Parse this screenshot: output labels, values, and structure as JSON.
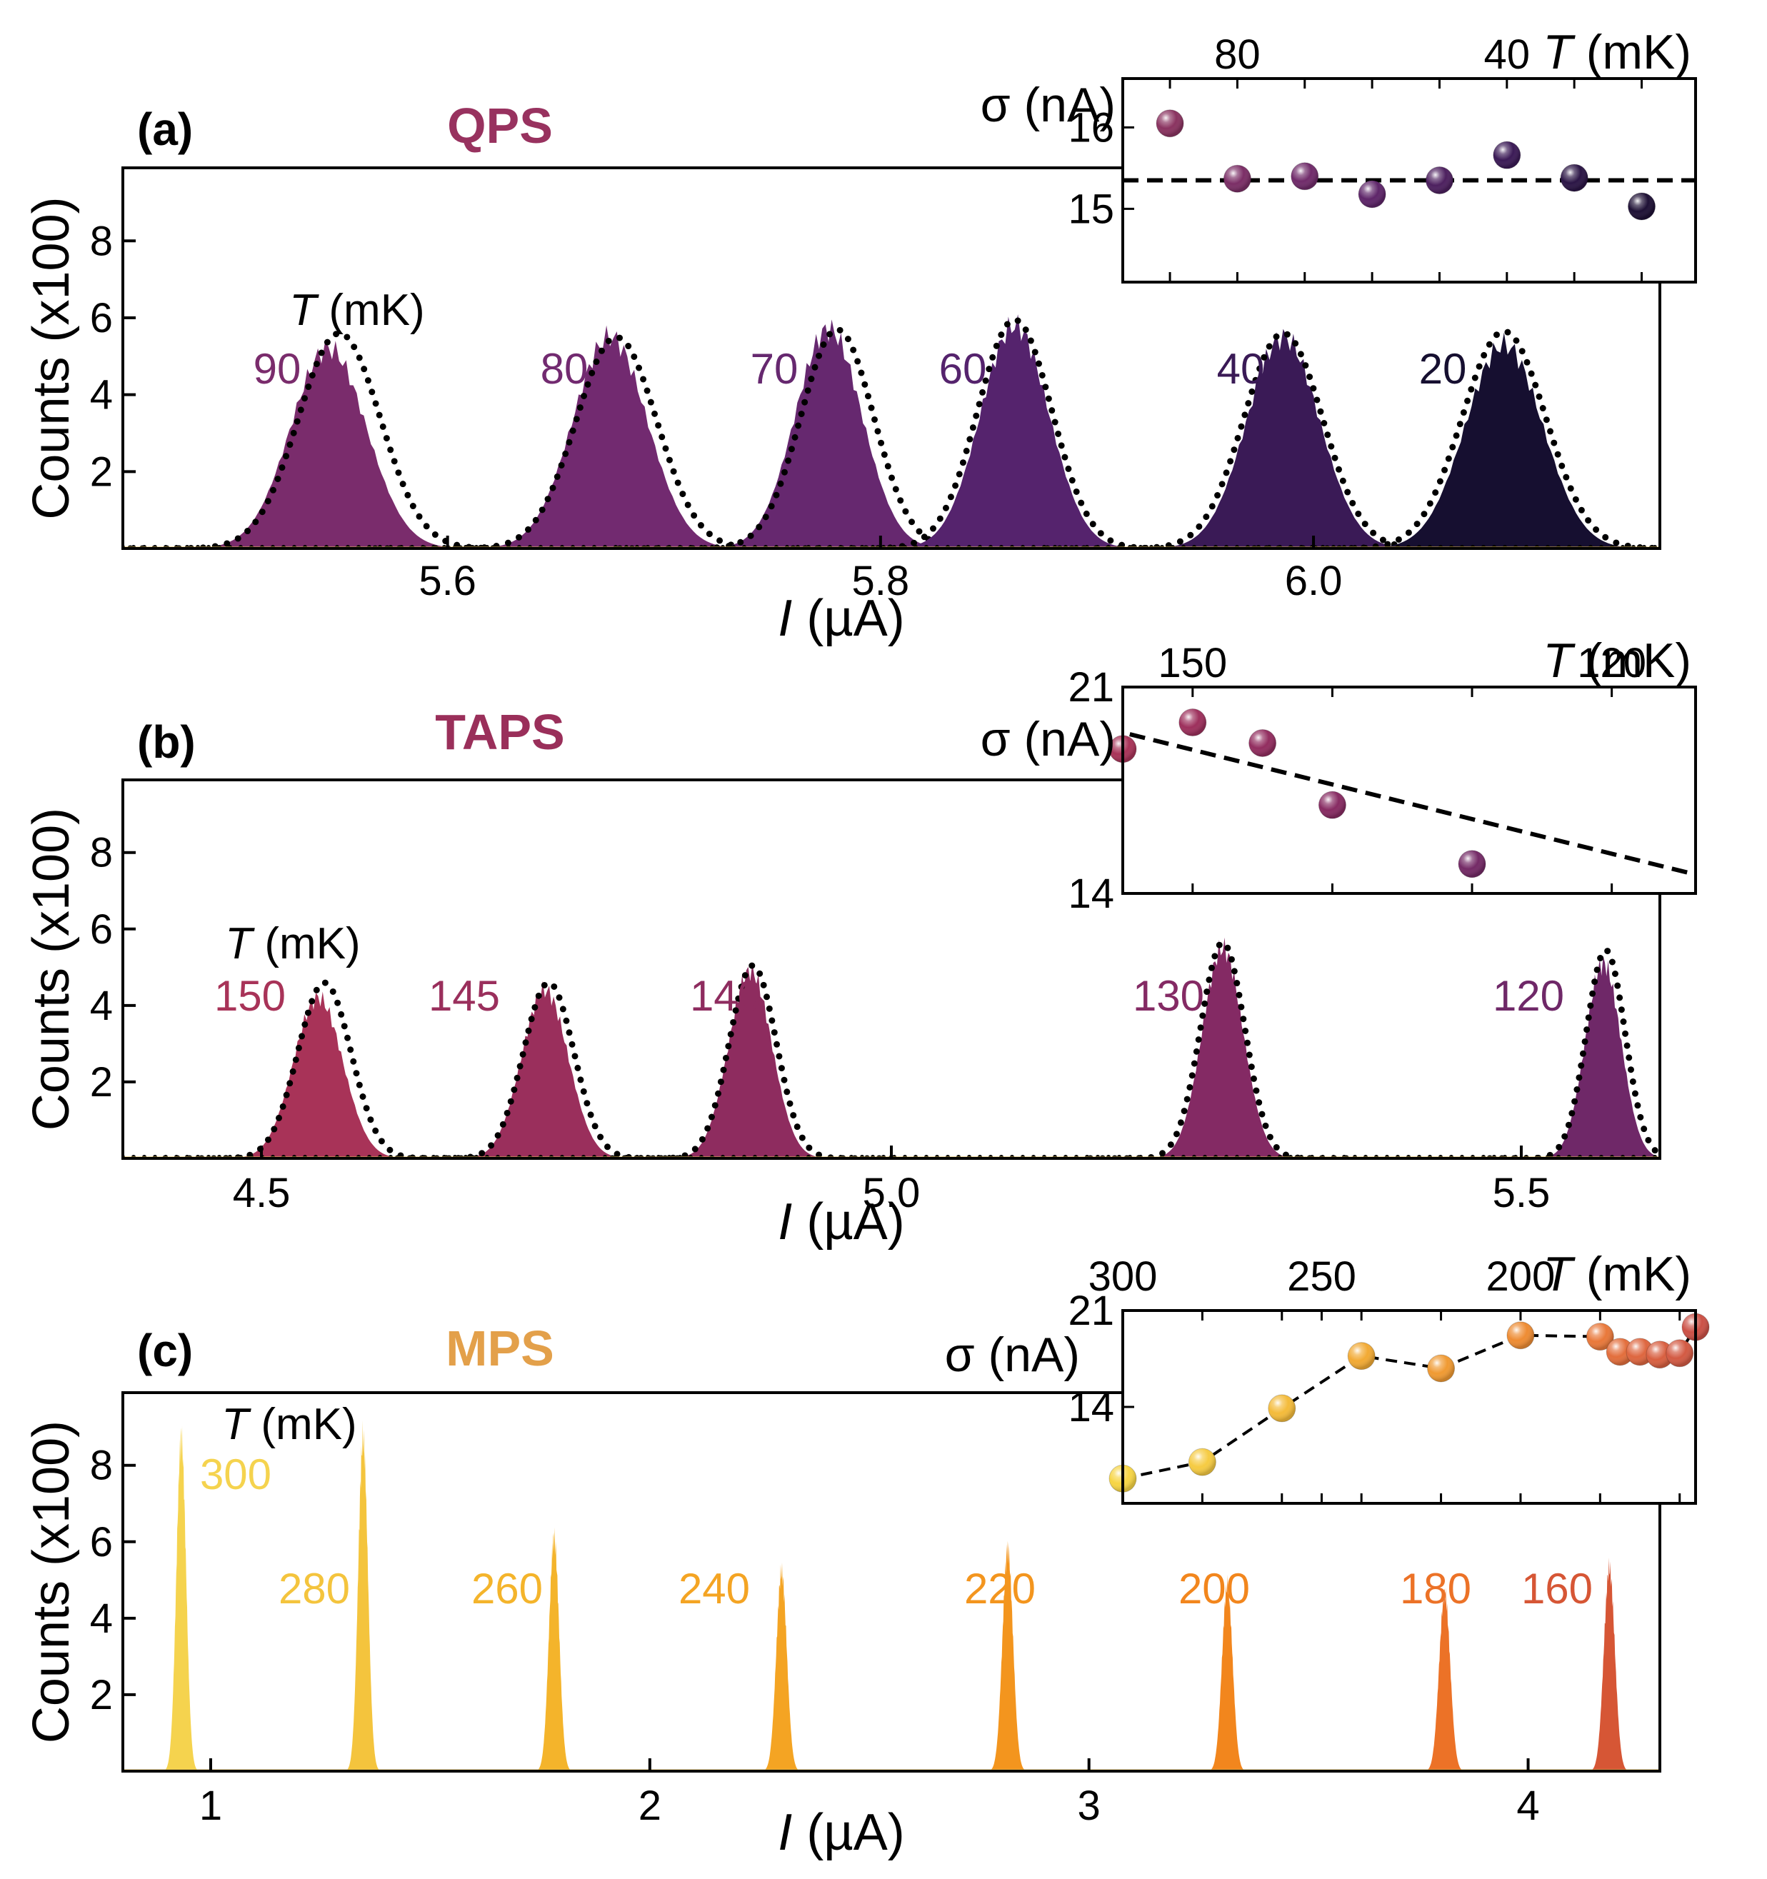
{
  "chart_data": [
    {
      "id": "a",
      "type": "area",
      "panel_label": "(a)",
      "title": "QPS",
      "title_color": "#98325f",
      "xlabel_italic": "I",
      "xlabel_unit": " (µA)",
      "ylabel": "Counts (x100)",
      "xlim": [
        5.45,
        6.16
      ],
      "ylim": [
        0,
        9.9
      ],
      "xticks": [
        5.6,
        5.8,
        6.0
      ],
      "xtick_labels": [
        "5.6",
        "5.8",
        "6.0"
      ],
      "yticks": [
        2,
        4,
        6,
        8
      ],
      "ytick_labels": [
        "2",
        "4",
        "6",
        "8"
      ],
      "t_header_italic": "T",
      "t_header_unit": " (mK)",
      "series": [
        {
          "name": "90",
          "center": 5.545,
          "sigma": 0.0175,
          "peak": 5.2,
          "fit_center": 5.55,
          "fit_peak": 5.6,
          "color": "#7a2c6c"
        },
        {
          "name": "80",
          "center": 5.675,
          "sigma": 0.0172,
          "peak": 5.5,
          "fit_center": 5.678,
          "fit_peak": 5.5,
          "color": "#722a70"
        },
        {
          "name": "70",
          "center": 5.776,
          "sigma": 0.0155,
          "peak": 5.7,
          "fit_center": 5.78,
          "fit_peak": 5.7,
          "color": "#66286f"
        },
        {
          "name": "60",
          "center": 5.862,
          "sigma": 0.0158,
          "peak": 5.8,
          "fit_center": 5.862,
          "fit_peak": 5.95,
          "color": "#55236d"
        },
        {
          "name": "40",
          "center": 5.986,
          "sigma": 0.0168,
          "peak": 5.5,
          "fit_center": 5.986,
          "fit_peak": 5.6,
          "color": "#3a1a56"
        },
        {
          "name": "20",
          "center": 6.088,
          "sigma": 0.0178,
          "peak": 5.3,
          "fit_center": 6.088,
          "fit_peak": 5.65,
          "color": "#160f30"
        }
      ],
      "inset": {
        "ylabel": "σ (nA)",
        "ylim": [
          14.1,
          16.6
        ],
        "yticks": [
          15,
          16
        ],
        "ytick_labels": [
          "15",
          "16"
        ],
        "top_axis_label_italic": "T",
        "top_axis_label_unit": " (mK)",
        "xlim": [
          97,
          12
        ],
        "xticks": [
          80,
          40
        ],
        "xtick_labels": [
          "80",
          "40"
        ],
        "minor_ticks": [
          90,
          70,
          60,
          50,
          30,
          20
        ],
        "points": [
          {
            "T": 90,
            "sigma": 16.05,
            "color": "#8a3360"
          },
          {
            "T": 80,
            "sigma": 15.37,
            "color": "#7b2e66"
          },
          {
            "T": 70,
            "sigma": 15.4,
            "color": "#702b6a"
          },
          {
            "T": 60,
            "sigma": 15.18,
            "color": "#5e2569"
          },
          {
            "T": 50,
            "sigma": 15.35,
            "color": "#4d205f"
          },
          {
            "T": 40,
            "sigma": 15.66,
            "color": "#3b1a56"
          },
          {
            "T": 30,
            "sigma": 15.38,
            "color": "#2b1545"
          },
          {
            "T": 20,
            "sigma": 15.03,
            "color": "#1e1035"
          }
        ],
        "fit": {
          "kind": "constant",
          "value": 15.35
        }
      }
    },
    {
      "id": "b",
      "type": "area",
      "panel_label": "(b)",
      "title": "TAPS",
      "title_color": "#9a2f5a",
      "xlabel_italic": "I",
      "xlabel_unit": " (µA)",
      "ylabel": "Counts (x100)",
      "xlim": [
        4.39,
        5.61
      ],
      "ylim": [
        0,
        9.9
      ],
      "xticks": [
        4.5,
        5.0,
        5.5
      ],
      "xtick_labels": [
        "4.5",
        "5.0",
        "5.5"
      ],
      "yticks": [
        2,
        4,
        6,
        8
      ],
      "ytick_labels": [
        "2",
        "4",
        "6",
        "8"
      ],
      "t_header_italic": "T",
      "t_header_unit": " (mK)",
      "series": [
        {
          "name": "150",
          "center": 4.545,
          "sigma": 0.0195,
          "peak": 4.2,
          "fit_center": 4.55,
          "fit_peak": 4.6,
          "color": "#a83358"
        },
        {
          "name": "145",
          "center": 4.725,
          "sigma": 0.0185,
          "peak": 4.4,
          "fit_center": 4.728,
          "fit_peak": 4.6,
          "color": "#9a2f5c"
        },
        {
          "name": "140",
          "center": 4.888,
          "sigma": 0.0172,
          "peak": 4.9,
          "fit_center": 4.89,
          "fit_peak": 5.05,
          "color": "#8e2c5f"
        },
        {
          "name": "130",
          "center": 5.263,
          "sigma": 0.0162,
          "peak": 5.5,
          "fit_center": 5.263,
          "fit_peak": 5.65,
          "color": "#842a64"
        },
        {
          "name": "120",
          "center": 5.565,
          "sigma": 0.0142,
          "peak": 5.1,
          "fit_center": 5.567,
          "fit_peak": 5.45,
          "color": "#6f2868"
        }
      ],
      "inset": {
        "ylabel": "σ (nA)",
        "ylim": [
          14,
          21
        ],
        "yticks": [
          14,
          21
        ],
        "ytick_labels": [
          "14",
          "21"
        ],
        "top_axis_label_italic": "T",
        "top_axis_label_unit": " (mK)",
        "xlim": [
          155,
          114
        ],
        "xticks": [
          150,
          120
        ],
        "xtick_labels": [
          "150",
          "120"
        ],
        "minor_ticks": [
          140,
          130
        ],
        "points": [
          {
            "T": 155,
            "sigma": 18.9,
            "color": "#a83358"
          },
          {
            "T": 150,
            "sigma": 19.8,
            "color": "#9d305c"
          },
          {
            "T": 145,
            "sigma": 19.1,
            "color": "#922d5f"
          },
          {
            "T": 140,
            "sigma": 17.0,
            "color": "#872b62"
          },
          {
            "T": 130,
            "sigma": 15.0,
            "color": "#742a66"
          }
        ],
        "fit": {
          "kind": "linear",
          "from": [
            154.5,
            19.4
          ],
          "to": [
            114.5,
            14.7
          ]
        }
      }
    },
    {
      "id": "c",
      "type": "area",
      "panel_label": "(c)",
      "title": "MPS",
      "title_color": "#e3a04a",
      "xlabel_italic": "I",
      "xlabel_unit": " (µA)",
      "ylabel": "Counts (x100)",
      "xlim": [
        0.8,
        4.3
      ],
      "ylim": [
        0,
        9.9
      ],
      "xticks": [
        1,
        2,
        3,
        4
      ],
      "xtick_labels": [
        "1",
        "2",
        "3",
        "4"
      ],
      "yticks": [
        2,
        4,
        6,
        8
      ],
      "ytick_labels": [
        "2",
        "4",
        "6",
        "8"
      ],
      "t_header_italic": "T",
      "t_header_unit": " (mK)",
      "series": [
        {
          "name": "300",
          "center": 0.933,
          "sigma": 0.011,
          "peak": 8.7,
          "color": "#f5d34e"
        },
        {
          "name": "280",
          "center": 1.347,
          "sigma": 0.011,
          "peak": 8.7,
          "color": "#f4c43d"
        },
        {
          "name": "260",
          "center": 1.782,
          "sigma": 0.0115,
          "peak": 6.1,
          "color": "#f4b42b"
        },
        {
          "name": "240",
          "center": 2.3,
          "sigma": 0.012,
          "peak": 5.2,
          "color": "#f4a423"
        },
        {
          "name": "220",
          "center": 2.815,
          "sigma": 0.012,
          "peak": 5.8,
          "color": "#f3951e"
        },
        {
          "name": "200",
          "center": 3.315,
          "sigma": 0.012,
          "peak": 4.85,
          "color": "#f2861d"
        },
        {
          "name": "180",
          "center": 3.81,
          "sigma": 0.0125,
          "peak": 4.65,
          "color": "#ec7227"
        },
        {
          "name": "160",
          "center": 4.185,
          "sigma": 0.0125,
          "peak": 5.3,
          "color": "#d65635"
        }
      ],
      "inset": {
        "ylabel": "σ (nA)",
        "ylim": [
          7,
          21
        ],
        "yticks": [
          14,
          21
        ],
        "ytick_labels": [
          "14",
          "21"
        ],
        "top_axis_label_italic": "T",
        "top_axis_label_unit": " (mK)",
        "xlim": [
          300,
          156
        ],
        "xticks": [
          300,
          250,
          200
        ],
        "xtick_labels": [
          "300",
          "250",
          "200"
        ],
        "minor_ticks": [
          280,
          260,
          240,
          220,
          180,
          160
        ],
        "points": [
          {
            "T": 300,
            "sigma": 8.8,
            "color": "#f7d544"
          },
          {
            "T": 280,
            "sigma": 10.0,
            "color": "#f6cb42"
          },
          {
            "T": 260,
            "sigma": 13.9,
            "color": "#f4bb3a"
          },
          {
            "T": 240,
            "sigma": 17.7,
            "color": "#f2aa34"
          },
          {
            "T": 220,
            "sigma": 16.8,
            "color": "#f09a32"
          },
          {
            "T": 200,
            "sigma": 19.2,
            "color": "#ee8c33"
          },
          {
            "T": 180,
            "sigma": 19.1,
            "color": "#e9783a"
          },
          {
            "T": 175,
            "sigma": 18.0,
            "color": "#e36e3c"
          },
          {
            "T": 170,
            "sigma": 18.0,
            "color": "#de663f"
          },
          {
            "T": 165,
            "sigma": 17.8,
            "color": "#d85f40"
          },
          {
            "T": 160,
            "sigma": 17.9,
            "color": "#d35a43"
          },
          {
            "T": 156,
            "sigma": 19.8,
            "color": "#cc5146"
          }
        ],
        "fit": {
          "kind": "connect"
        }
      }
    }
  ]
}
